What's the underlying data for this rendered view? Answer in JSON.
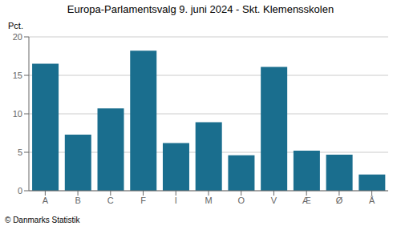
{
  "chart_data": {
    "type": "bar",
    "title": "Europa-Parlamentsvalg 9. juni 2024 - Skt. Klemensskolen",
    "ylabel": "Pct.",
    "footer": "© Danmarks Statistik",
    "categories": [
      "A",
      "B",
      "C",
      "F",
      "I",
      "M",
      "O",
      "V",
      "Æ",
      "Ø",
      "Å"
    ],
    "values": [
      16.5,
      7.3,
      10.7,
      18.2,
      6.2,
      8.9,
      4.6,
      16.1,
      5.2,
      4.7,
      2.1
    ],
    "color": "#1a6e8e",
    "ylim": [
      0,
      20
    ],
    "yticks": [
      0,
      5,
      10,
      15,
      20
    ],
    "grid": true
  }
}
